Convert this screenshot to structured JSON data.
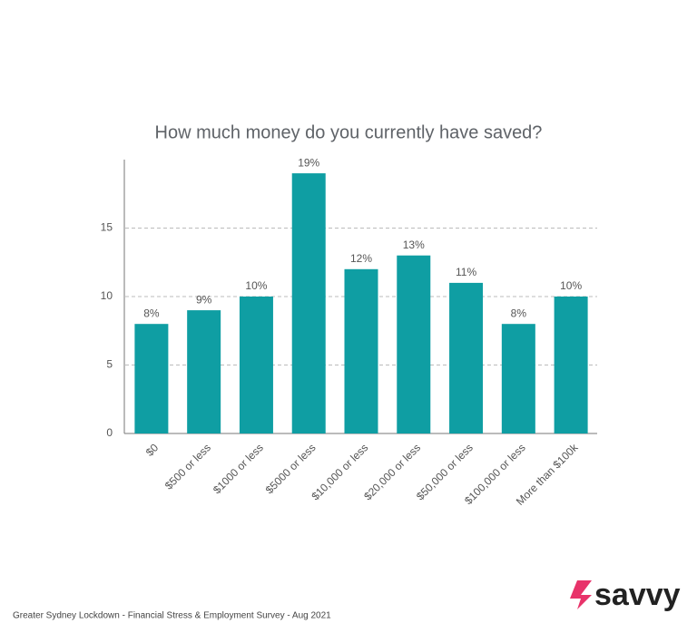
{
  "chart_data": {
    "type": "bar",
    "title": "How much money do you currently have saved?",
    "categories": [
      "$0",
      "$500 or less",
      "$1000 or less",
      "$5000 or less",
      "$10,000 or less",
      "$20,000 or less",
      "$50,000 or less",
      "$100,000 or less",
      "More than $100k"
    ],
    "values": [
      8,
      9,
      10,
      19,
      12,
      13,
      11,
      8,
      10
    ],
    "value_labels": [
      "8%",
      "9%",
      "10%",
      "19%",
      "12%",
      "13%",
      "11%",
      "8%",
      "10%"
    ],
    "color": "#0f9ea3",
    "ylim": [
      0,
      20
    ],
    "yticks": [
      0,
      5,
      10,
      15
    ],
    "grid": true
  },
  "footer": "Greater Sydney Lockdown - Financial Stress & Employment Survey - Aug 2021",
  "logo": "savvy"
}
